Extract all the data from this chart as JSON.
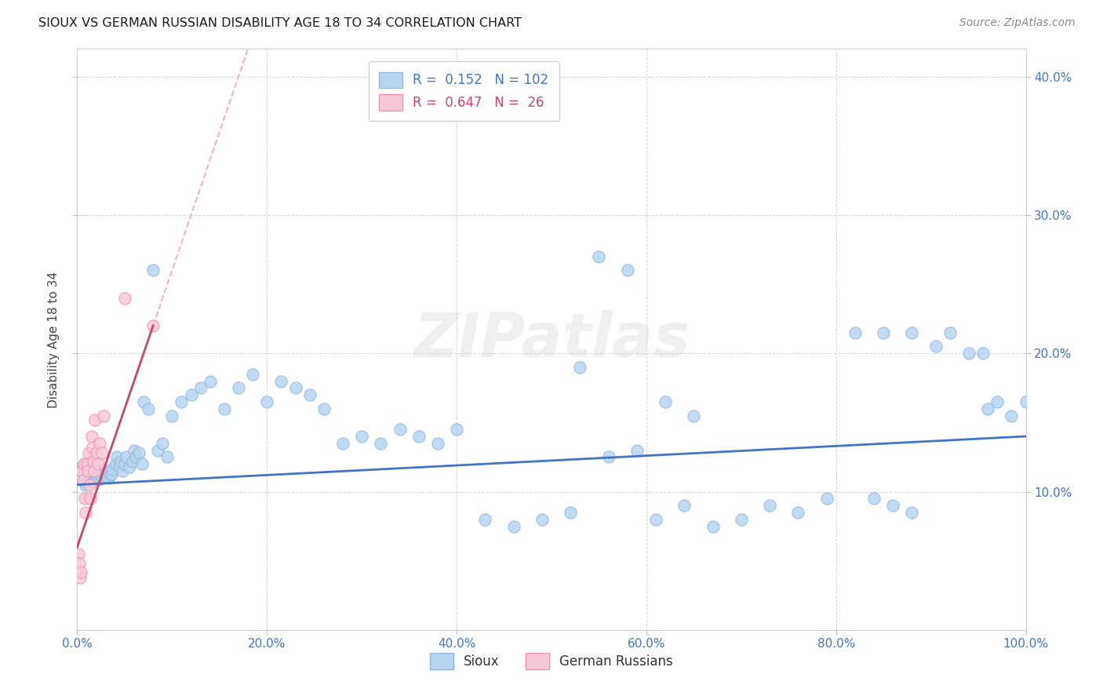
{
  "title": "SIOUX VS GERMAN RUSSIAN DISABILITY AGE 18 TO 34 CORRELATION CHART",
  "source": "Source: ZipAtlas.com",
  "ylabel": "Disability Age 18 to 34",
  "legend1_r": "0.152",
  "legend1_n": "102",
  "legend2_r": "0.647",
  "legend2_n": "26",
  "sioux_color": "#b8d4f0",
  "sioux_edge": "#90b8e0",
  "german_color": "#f8c8d8",
  "german_edge": "#f090b0",
  "trend_blue": "#4472c4",
  "trend_pink_solid": "#d04070",
  "trend_pink_dash_color": "#e8a0b8",
  "xlim": [
    0.0,
    1.0
  ],
  "ylim": [
    0.0,
    0.42
  ],
  "yticks": [
    0.1,
    0.2,
    0.3,
    0.4
  ],
  "ytick_labels": [
    "10.0%",
    "20.0%",
    "30.0%",
    "40.0%"
  ],
  "xticks": [
    0.0,
    0.2,
    0.4,
    0.6,
    0.8,
    1.0
  ],
  "xtick_labels": [
    "0.0%",
    "20.0%",
    "40.0%",
    "60.0%",
    "80.0%",
    "100.0%"
  ],
  "sioux_x": [
    0.005,
    0.007,
    0.008,
    0.009,
    0.01,
    0.011,
    0.012,
    0.013,
    0.014,
    0.015,
    0.016,
    0.017,
    0.018,
    0.019,
    0.02,
    0.021,
    0.022,
    0.023,
    0.024,
    0.025,
    0.026,
    0.027,
    0.028,
    0.03,
    0.031,
    0.032,
    0.033,
    0.034,
    0.035,
    0.036,
    0.037,
    0.04,
    0.042,
    0.044,
    0.046,
    0.048,
    0.05,
    0.052,
    0.055,
    0.058,
    0.06,
    0.062,
    0.065,
    0.068,
    0.07,
    0.075,
    0.08,
    0.085,
    0.09,
    0.095,
    0.1,
    0.11,
    0.12,
    0.13,
    0.14,
    0.155,
    0.17,
    0.185,
    0.2,
    0.215,
    0.23,
    0.245,
    0.26,
    0.28,
    0.3,
    0.32,
    0.34,
    0.36,
    0.38,
    0.4,
    0.43,
    0.46,
    0.49,
    0.52,
    0.55,
    0.58,
    0.61,
    0.64,
    0.67,
    0.7,
    0.73,
    0.76,
    0.79,
    0.82,
    0.85,
    0.88,
    0.905,
    0.92,
    0.94,
    0.955,
    0.97,
    0.985,
    1.0,
    0.53,
    0.56,
    0.59,
    0.62,
    0.65,
    0.84,
    0.86,
    0.88,
    0.96
  ],
  "sioux_y": [
    0.118,
    0.112,
    0.108,
    0.105,
    0.11,
    0.115,
    0.108,
    0.112,
    0.106,
    0.11,
    0.115,
    0.109,
    0.112,
    0.108,
    0.115,
    0.11,
    0.112,
    0.109,
    0.113,
    0.111,
    0.11,
    0.113,
    0.115,
    0.112,
    0.115,
    0.113,
    0.11,
    0.115,
    0.112,
    0.113,
    0.116,
    0.12,
    0.125,
    0.118,
    0.122,
    0.115,
    0.12,
    0.125,
    0.118,
    0.122,
    0.13,
    0.125,
    0.128,
    0.12,
    0.165,
    0.16,
    0.26,
    0.13,
    0.135,
    0.125,
    0.155,
    0.165,
    0.17,
    0.175,
    0.18,
    0.16,
    0.175,
    0.185,
    0.165,
    0.18,
    0.175,
    0.17,
    0.16,
    0.135,
    0.14,
    0.135,
    0.145,
    0.14,
    0.135,
    0.145,
    0.08,
    0.075,
    0.08,
    0.085,
    0.27,
    0.26,
    0.08,
    0.09,
    0.075,
    0.08,
    0.09,
    0.085,
    0.095,
    0.215,
    0.215,
    0.215,
    0.205,
    0.215,
    0.2,
    0.2,
    0.165,
    0.155,
    0.165,
    0.19,
    0.125,
    0.13,
    0.165,
    0.155,
    0.095,
    0.09,
    0.085,
    0.16
  ],
  "german_x": [
    0.001,
    0.002,
    0.003,
    0.004,
    0.005,
    0.006,
    0.007,
    0.008,
    0.009,
    0.01,
    0.011,
    0.012,
    0.013,
    0.014,
    0.015,
    0.016,
    0.017,
    0.018,
    0.019,
    0.02,
    0.022,
    0.024,
    0.026,
    0.028,
    0.05,
    0.08
  ],
  "german_y": [
    0.055,
    0.048,
    0.038,
    0.042,
    0.115,
    0.108,
    0.12,
    0.095,
    0.085,
    0.12,
    0.115,
    0.128,
    0.105,
    0.095,
    0.14,
    0.132,
    0.122,
    0.115,
    0.152,
    0.128,
    0.12,
    0.135,
    0.128,
    0.155,
    0.24,
    0.22
  ]
}
